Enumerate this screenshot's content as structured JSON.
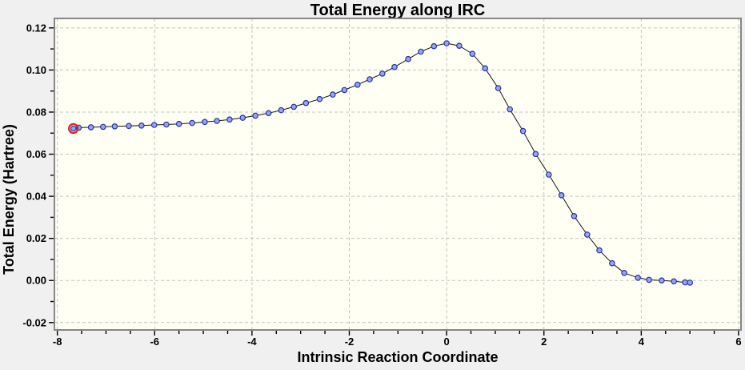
{
  "window": {
    "background_color": "#f0f0f0"
  },
  "chart_data": {
    "type": "line",
    "title": "Total Energy along IRC",
    "xlabel": "Intrinsic Reaction Coordinate",
    "ylabel": "Total Energy (Hartree)",
    "xlim": [
      -8.06,
      6.05
    ],
    "ylim": [
      -0.0235,
      0.1245
    ],
    "grid": {
      "show": true,
      "style": "dashed",
      "at": "major-ticks"
    },
    "legend_position": "none",
    "x_ticks": {
      "values": [
        -8,
        -6,
        -4,
        -2,
        0,
        2,
        4,
        6
      ],
      "labels": [
        "-8",
        "-6",
        "-4",
        "-2",
        "0",
        "2",
        "4",
        "6"
      ]
    },
    "x_minor_tick_step": 0.5,
    "y_ticks": {
      "values": [
        -0.02,
        0.0,
        0.02,
        0.04,
        0.06,
        0.08,
        0.1,
        0.12
      ],
      "labels": [
        "-0.02",
        "0.00",
        "0.02",
        "0.04",
        "0.06",
        "0.08",
        "0.10",
        "0.12"
      ]
    },
    "y_minor_tick_step": 0.01,
    "series": [
      {
        "name": "Total Energy",
        "marker": "circle",
        "x": [
          -7.67,
          -7.56,
          -7.31,
          -7.06,
          -6.82,
          -6.53,
          -6.27,
          -6.01,
          -5.76,
          -5.5,
          -5.23,
          -4.97,
          -4.72,
          -4.46,
          -4.19,
          -3.93,
          -3.66,
          -3.4,
          -3.14,
          -2.89,
          -2.61,
          -2.34,
          -2.1,
          -1.83,
          -1.58,
          -1.32,
          -1.07,
          -0.79,
          -0.53,
          -0.26,
          0.0,
          0.26,
          0.53,
          0.79,
          1.06,
          1.3,
          1.57,
          1.83,
          2.1,
          2.36,
          2.62,
          2.89,
          3.14,
          3.4,
          3.65,
          3.93,
          4.16,
          4.42,
          4.67,
          4.9,
          5.0
        ],
        "y": [
          0.0722,
          0.0726,
          0.0728,
          0.073,
          0.0732,
          0.0734,
          0.0736,
          0.0739,
          0.0741,
          0.0744,
          0.0748,
          0.0753,
          0.0758,
          0.0765,
          0.0773,
          0.0783,
          0.0795,
          0.0809,
          0.0825,
          0.0843,
          0.0862,
          0.0883,
          0.0905,
          0.093,
          0.0956,
          0.0983,
          0.1014,
          0.1052,
          0.1087,
          0.1113,
          0.1127,
          0.1115,
          0.1077,
          0.1008,
          0.0914,
          0.0813,
          0.071,
          0.0601,
          0.0503,
          0.0405,
          0.0306,
          0.0218,
          0.0143,
          0.0082,
          0.0036,
          0.0013,
          0.0003,
          0.0,
          -0.0004,
          -0.0009,
          -0.001
        ]
      }
    ],
    "highlighted_point": {
      "series": 0,
      "index": 0,
      "style": "red-ring"
    }
  },
  "colors": {
    "window_bg": "#f0f0f0",
    "plot_bg": "#fffff4",
    "plot_border": "#868686",
    "grid": "#c4c4c4",
    "tick": "#000000",
    "line": "#151515",
    "marker_fill": "#9aa4ea",
    "marker_edge": "#2633aa",
    "highlight_ring": "#dd2222",
    "text": "#000000"
  }
}
